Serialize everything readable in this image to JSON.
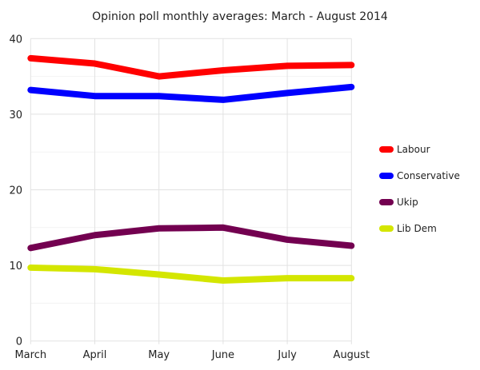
{
  "chart_data": {
    "type": "line",
    "title": "Opinion poll monthly averages: March - August 2014",
    "xlabel": "",
    "ylabel": "",
    "categories": [
      "March",
      "April",
      "May",
      "June",
      "July",
      "August"
    ],
    "ylim": [
      0,
      40
    ],
    "yticks": [
      "0",
      "10",
      "20",
      "30",
      "40"
    ],
    "grid": true,
    "legend_position": "right",
    "series": [
      {
        "name": "Labour",
        "color": "#ff0000",
        "values": [
          37.4,
          36.7,
          35.0,
          35.8,
          36.4,
          36.5
        ]
      },
      {
        "name": "Conservative",
        "color": "#0000ff",
        "values": [
          33.2,
          32.4,
          32.4,
          31.9,
          32.8,
          33.6
        ]
      },
      {
        "name": "Ukip",
        "color": "#730050",
        "values": [
          12.3,
          14.0,
          14.9,
          15.0,
          13.4,
          12.6
        ]
      },
      {
        "name": "Lib Dem",
        "color": "#d4e600",
        "values": [
          9.7,
          9.5,
          8.8,
          8.0,
          8.3,
          8.3
        ]
      }
    ]
  }
}
